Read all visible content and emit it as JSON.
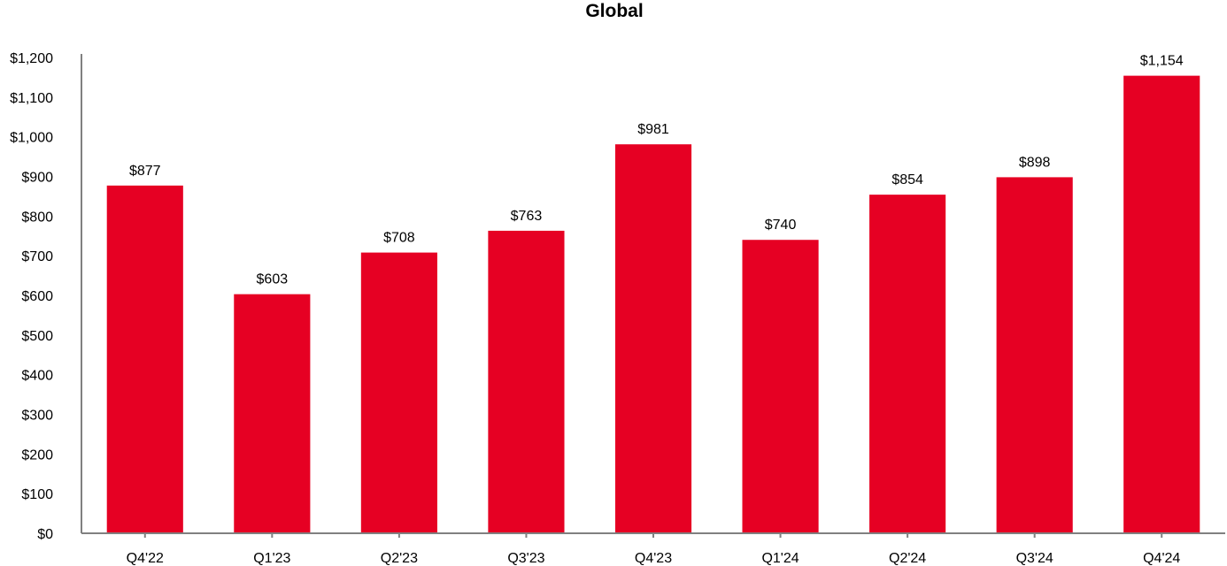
{
  "chart_data": {
    "type": "bar",
    "title": "Global",
    "xlabel": "",
    "ylabel": "",
    "categories": [
      "Q4'22",
      "Q1'23",
      "Q2'23",
      "Q3'23",
      "Q4'23",
      "Q1'24",
      "Q2'24",
      "Q3'24",
      "Q4'24"
    ],
    "values": [
      877,
      603,
      708,
      763,
      981,
      740,
      854,
      898,
      1154
    ],
    "data_labels": [
      "$877",
      "$603",
      "$708",
      "$763",
      "$981",
      "$740",
      "$854",
      "$898",
      "$1,154"
    ],
    "ylim": [
      0,
      1200
    ],
    "y_ticks": [
      0,
      100,
      200,
      300,
      400,
      500,
      600,
      700,
      800,
      900,
      1000,
      1100,
      1200
    ],
    "y_tick_labels": [
      "$0",
      "$100",
      "$200",
      "$300",
      "$400",
      "$500",
      "$600",
      "$700",
      "$800",
      "$900",
      "$1,000",
      "$1,100",
      "$1,200"
    ],
    "grid": false,
    "legend": "none",
    "bar_color": "#E60023"
  }
}
